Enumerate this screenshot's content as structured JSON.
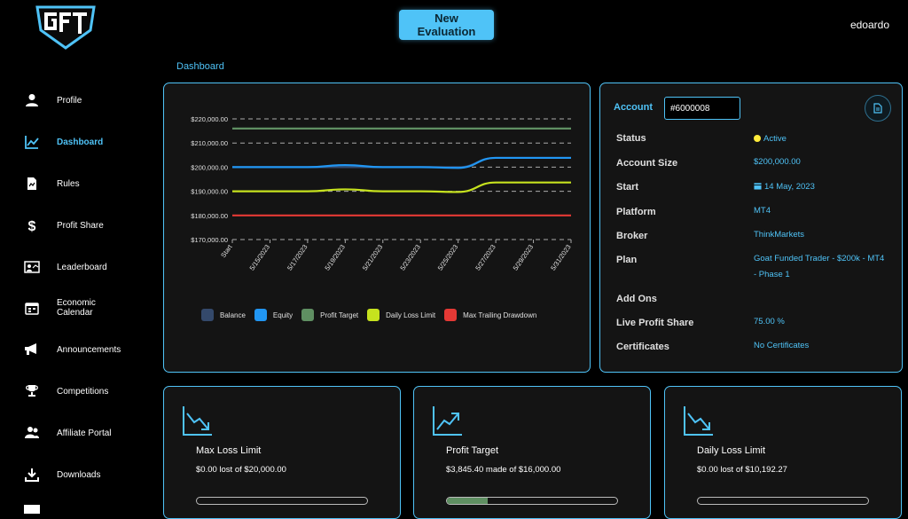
{
  "header": {
    "new_evaluation_label": "New Evaluation",
    "username": "edoardo"
  },
  "breadcrumb": "Dashboard",
  "sidebar": {
    "items": [
      {
        "label": "Profile",
        "icon": "user-icon"
      },
      {
        "label": "Dashboard",
        "icon": "chart-line-icon",
        "active": true
      },
      {
        "label": "Rules",
        "icon": "document-icon"
      },
      {
        "label": "Profit Share",
        "icon": "dollar-icon"
      },
      {
        "label": "Leaderboard",
        "icon": "leaderboard-icon"
      },
      {
        "label": "Economic Calendar",
        "icon": "calendar-icon"
      },
      {
        "label": "Announcements",
        "icon": "megaphone-icon"
      },
      {
        "label": "Competitions",
        "icon": "trophy-icon"
      },
      {
        "label": "Affiliate Portal",
        "icon": "users-icon"
      },
      {
        "label": "Downloads",
        "icon": "download-icon"
      }
    ]
  },
  "account": {
    "label": "Account",
    "number": "#6000008",
    "details": [
      {
        "label": "Status",
        "value": "Active"
      },
      {
        "label": "Account Size",
        "value": "$200,000.00"
      },
      {
        "label": "Start",
        "value": "14 May, 2023"
      },
      {
        "label": "Platform",
        "value": "MT4"
      },
      {
        "label": "Broker",
        "value": "ThinkMarkets"
      },
      {
        "label": "Plan",
        "value": "Goat Funded Trader - $200k - MT4 - Phase 1"
      },
      {
        "label": "Add Ons",
        "value": ""
      },
      {
        "label": "Live Profit Share",
        "value": "75.00 %"
      },
      {
        "label": "Certificates",
        "value": "No Certificates"
      }
    ]
  },
  "cards": [
    {
      "title": "Max Loss Limit",
      "subtitle": "$0.00 lost of $20,000.00",
      "progress": 0,
      "icon": "trending-down-icon"
    },
    {
      "title": "Profit Target",
      "subtitle": "$3,845.40 made of $16,000.00",
      "progress": 0.24,
      "icon": "trending-up-icon"
    },
    {
      "title": "Daily Loss Limit",
      "subtitle": "$0.00 lost of $10,192.27",
      "progress": 0,
      "icon": "trending-down-icon"
    }
  ],
  "colors": {
    "accent": "#4fc3f7",
    "balance": "#34496b",
    "equity": "#2196f3",
    "profit_target": "#5f8f62",
    "daily_loss_limit": "#c6e21e",
    "max_trailing_drawdown": "#e53935"
  },
  "chart_data": {
    "type": "line",
    "x": [
      "Start",
      "5/15/2023",
      "5/17/2023",
      "5/19/2023",
      "5/21/2023",
      "5/23/2023",
      "5/25/2023",
      "5/27/2023",
      "5/29/2023",
      "5/31/2023"
    ],
    "ylim": [
      170000,
      220000
    ],
    "yticks": [
      "$220,000.00",
      "$210,000.00",
      "$200,000.00",
      "$190,000.00",
      "$180,000.00",
      "$170,000.00"
    ],
    "series": [
      {
        "name": "Balance",
        "color": "#34496b",
        "values": [
          200000,
          200000,
          200000,
          200000,
          200000,
          200000,
          200000,
          203845,
          203845,
          203845
        ]
      },
      {
        "name": "Equity",
        "color": "#2196f3",
        "values": [
          200000,
          200000,
          200000,
          200850,
          200000,
          200000,
          199700,
          203845,
          203845,
          203845
        ]
      },
      {
        "name": "Profit Target",
        "color": "#5f8f62",
        "values": [
          216000,
          216000,
          216000,
          216000,
          216000,
          216000,
          216000,
          216000,
          216000,
          216000
        ]
      },
      {
        "name": "Daily Loss Limit",
        "color": "#c6e21e",
        "values": [
          190000,
          190000,
          190000,
          190800,
          190000,
          190000,
          189700,
          193653,
          193653,
          193653
        ]
      },
      {
        "name": "Max Trailing Drawdown",
        "color": "#e53935",
        "values": [
          180000,
          180000,
          180000,
          180000,
          180000,
          180000,
          180000,
          180000,
          180000,
          180000
        ]
      }
    ],
    "grid": true,
    "legend_position": "bottom"
  }
}
